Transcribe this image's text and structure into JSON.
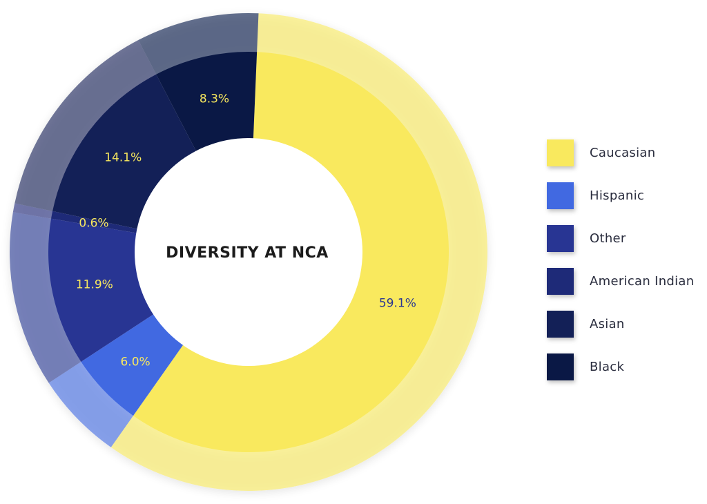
{
  "chart_data": {
    "type": "pie",
    "title": "DIVERSITY AT NCA",
    "categories": [
      "Caucasian",
      "Hispanic",
      "Other",
      "American Indian",
      "Asian",
      "Black"
    ],
    "values": [
      59.1,
      6.0,
      11.9,
      0.6,
      14.1,
      8.3
    ],
    "labels": [
      "59.1%",
      "6.0%",
      "11.9%",
      "0.6%",
      "14.1%",
      "8.3%"
    ],
    "colors": [
      "#F9E95E",
      "#4169E1",
      "#283593",
      "#1E2A78",
      "#132057",
      "#0A1845"
    ],
    "label_colors": [
      "#283593",
      "#F9E95E",
      "#F9E95E",
      "#F9E95E",
      "#F9E95E",
      "#F9E95E"
    ],
    "donut": true,
    "legend_position": "right"
  }
}
